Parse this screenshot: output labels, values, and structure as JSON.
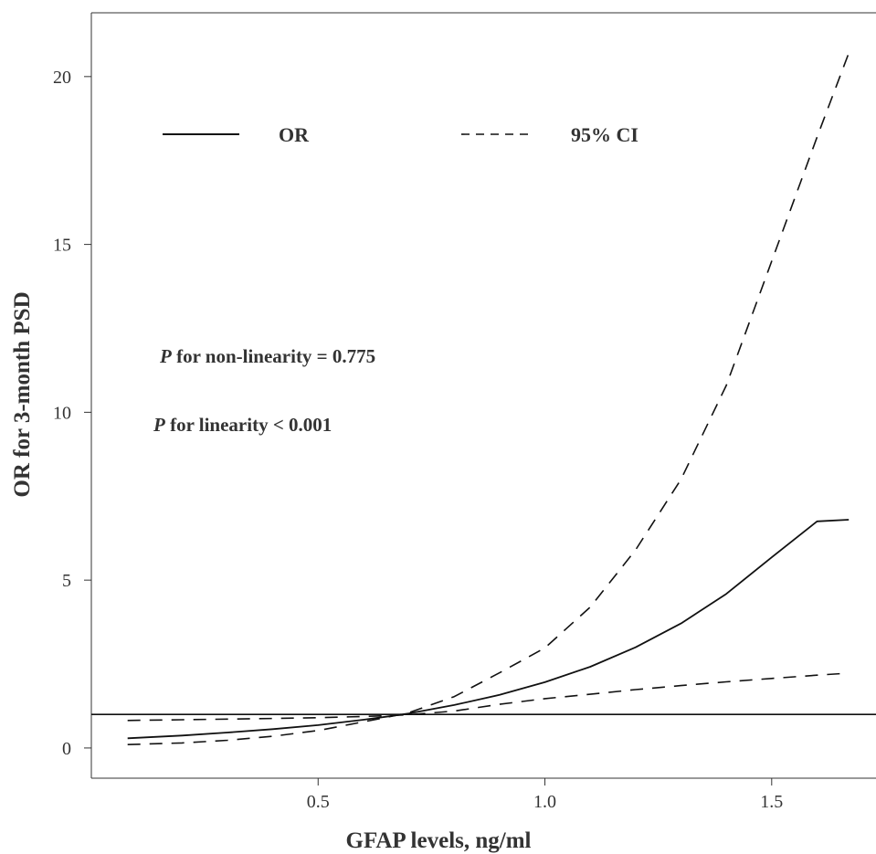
{
  "chart_data": {
    "type": "line",
    "xlabel": "GFAP levels, ng/ml",
    "ylabel": "OR for 3-month PSD",
    "xlim": [
      0.0,
      1.73
    ],
    "ylim": [
      -0.9,
      21.9
    ],
    "x_ticks": [
      0.5,
      1.0,
      1.5
    ],
    "x_tick_labels": [
      "0.5",
      "1.0",
      "1.5"
    ],
    "y_ticks": [
      0,
      5,
      10,
      15,
      20
    ],
    "y_tick_labels": [
      "0",
      "5",
      "10",
      "15",
      "20"
    ],
    "grid": false,
    "legend_position": "top",
    "reference_line": {
      "y": 1
    },
    "legend": [
      {
        "label": "OR",
        "style": "solid"
      },
      {
        "label": "95% CI",
        "style": "dashed"
      }
    ],
    "annotations": [
      {
        "italic": "P",
        "text": " for non-linearity = 0.775"
      },
      {
        "italic": "P",
        "text": " for linearity < 0.001"
      }
    ],
    "series": [
      {
        "name": "OR",
        "style": "solid",
        "x": [
          0.08,
          0.2,
          0.3,
          0.4,
          0.5,
          0.6,
          0.65,
          0.7,
          0.8,
          0.9,
          1.0,
          1.1,
          1.2,
          1.3,
          1.4,
          1.5,
          1.6,
          1.67
        ],
        "y": [
          0.29,
          0.37,
          0.46,
          0.56,
          0.68,
          0.84,
          0.93,
          1.03,
          1.28,
          1.58,
          1.96,
          2.42,
          3.0,
          3.71,
          4.59,
          5.68,
          6.75,
          6.8
        ]
      },
      {
        "name": "95% CI",
        "style": "dashed",
        "x": [
          0.08,
          0.2,
          0.3,
          0.4,
          0.5,
          0.6,
          0.65,
          0.7,
          0.8,
          0.9,
          1.0,
          1.1,
          1.2,
          1.3,
          1.4,
          1.5,
          1.6,
          1.67
        ],
        "y": [
          0.1,
          0.15,
          0.23,
          0.35,
          0.52,
          0.78,
          0.91,
          1.05,
          1.53,
          2.24,
          2.98,
          4.2,
          5.9,
          8.0,
          10.8,
          14.5,
          18.2,
          20.7
        ]
      },
      {
        "name": "95% CI",
        "style": "dashed",
        "x": [
          0.08,
          0.2,
          0.3,
          0.4,
          0.5,
          0.6,
          0.65,
          0.7,
          0.8,
          0.9,
          1.0,
          1.1,
          1.2,
          1.3,
          1.4,
          1.5,
          1.6,
          1.67
        ],
        "y": [
          0.82,
          0.84,
          0.86,
          0.88,
          0.9,
          0.94,
          0.96,
          0.99,
          1.1,
          1.3,
          1.47,
          1.6,
          1.74,
          1.86,
          1.97,
          2.07,
          2.17,
          2.23
        ]
      }
    ]
  }
}
